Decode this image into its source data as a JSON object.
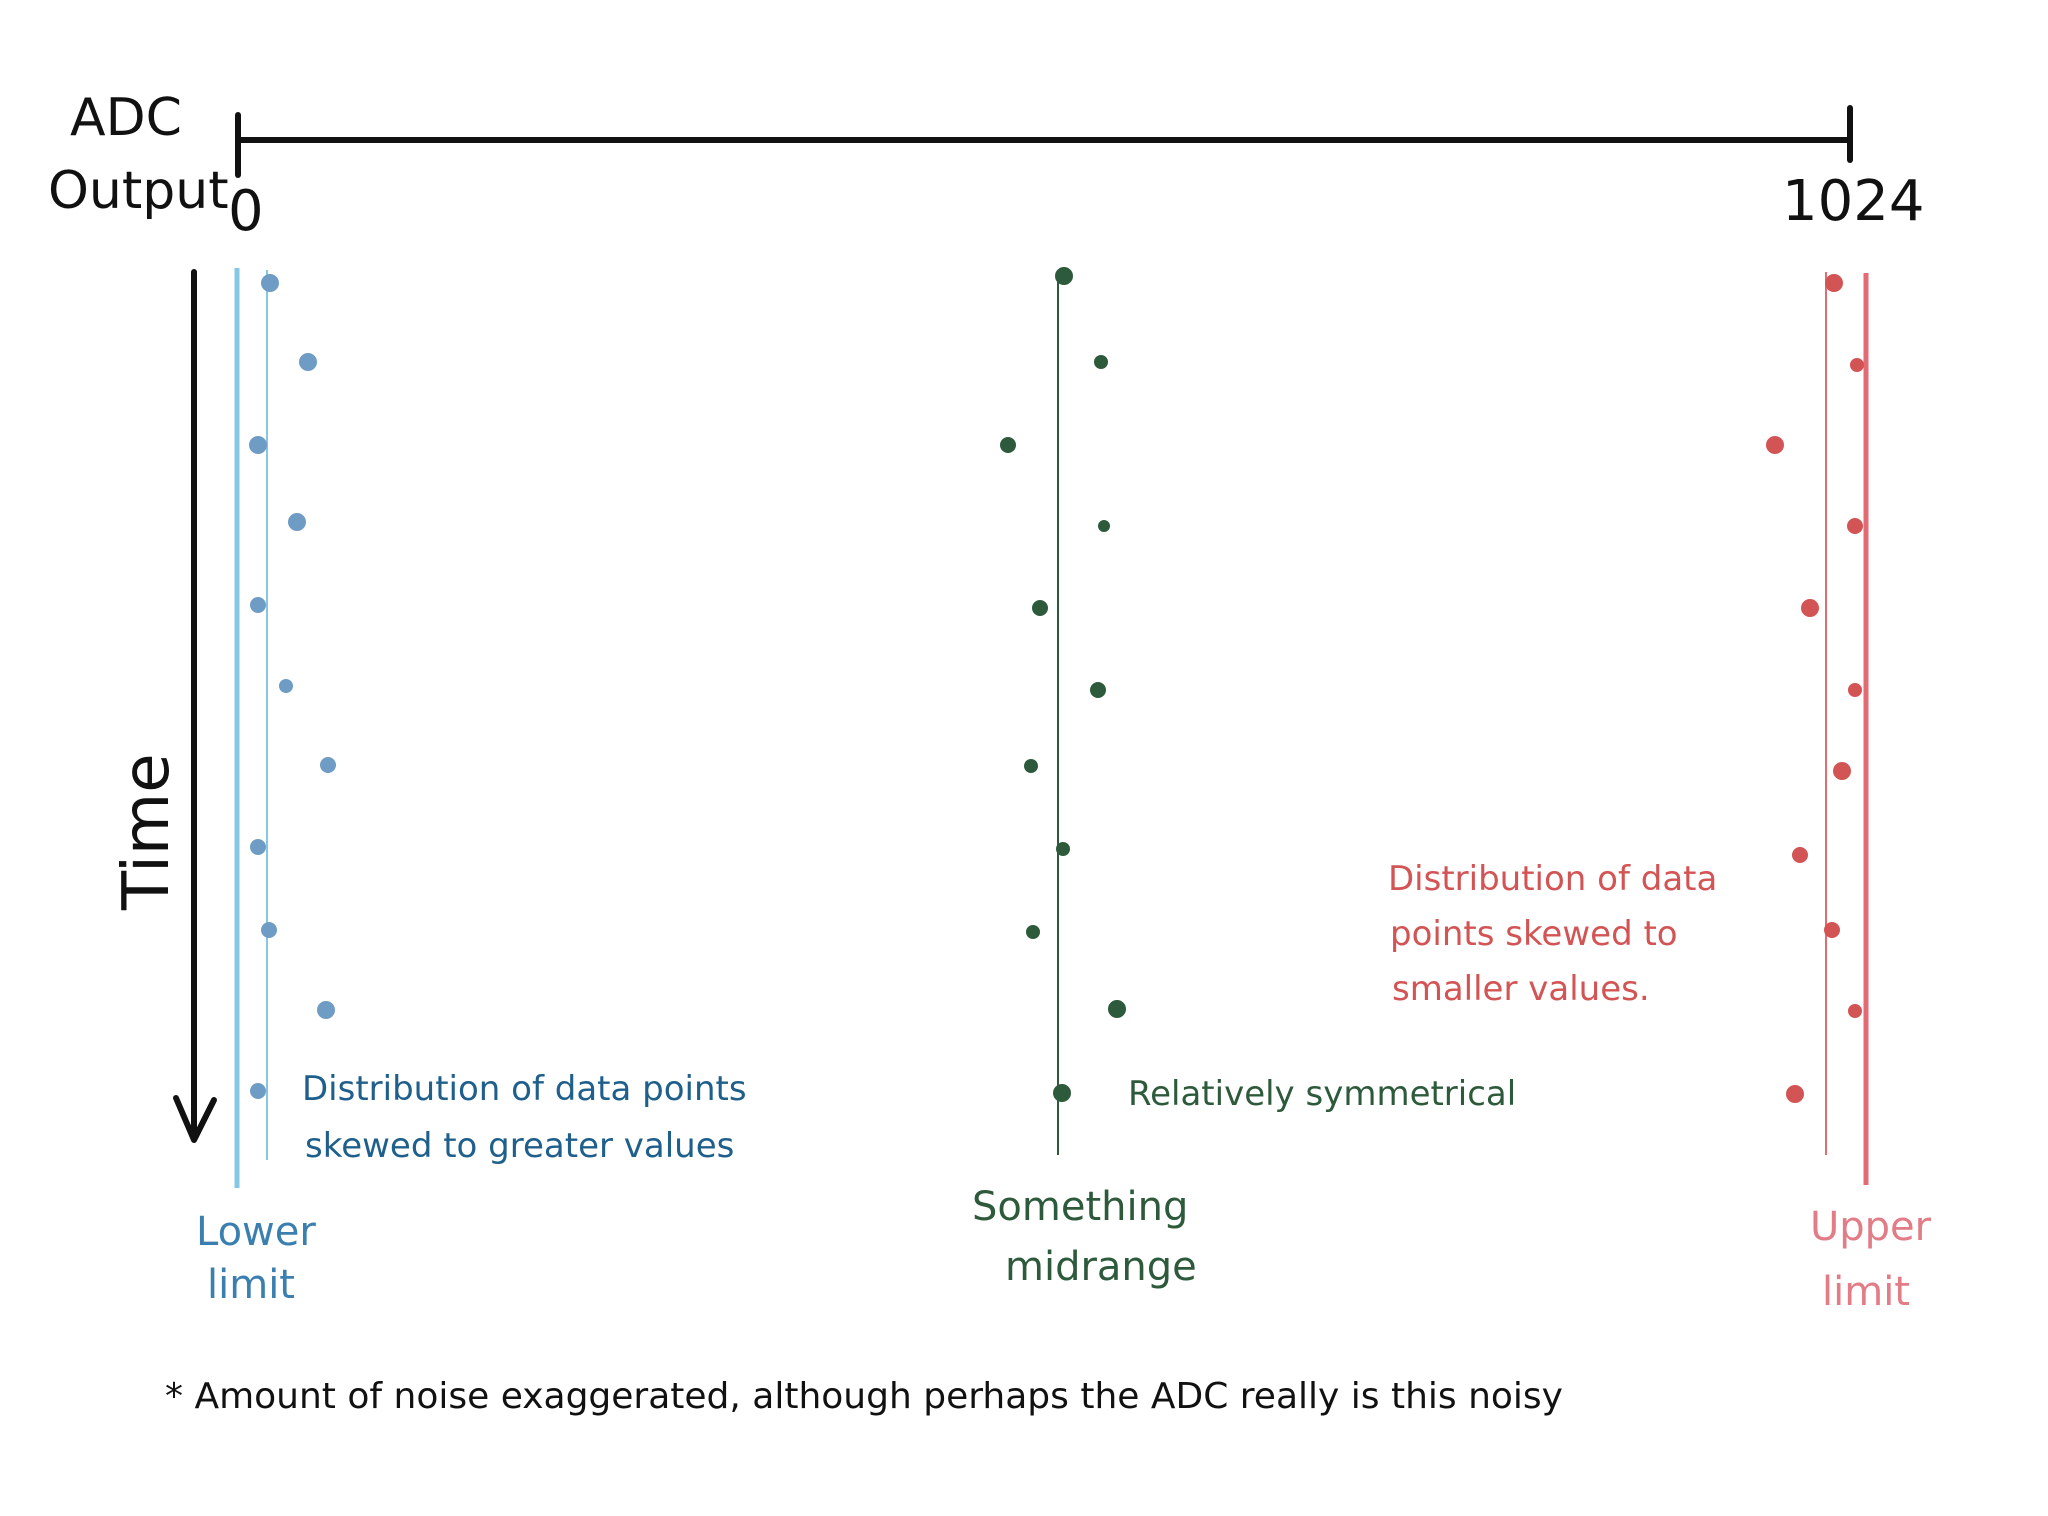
{
  "axis": {
    "title_line1": "ADC",
    "title_line2": "Output",
    "min_label": "0",
    "max_label": "1024",
    "time_label": "Time"
  },
  "channels": [
    {
      "id": "lower",
      "color": "#6f9cc4",
      "limit_line_color": "#86c7e3",
      "label_line1": "Lower",
      "label_line2": "limit",
      "note_lines": [
        "Distribution of data points",
        "skewed to greater values"
      ]
    },
    {
      "id": "mid",
      "color": "#2e5a3c",
      "limit_line_color": "#2e5a3c",
      "label_line1": "Something",
      "label_line2": "midrange",
      "note_lines": [
        "Relatively symmetrical"
      ]
    },
    {
      "id": "upper",
      "color": "#d35454",
      "limit_line_color": "#e36b73",
      "label_line1": "Upper",
      "label_line2": "limit",
      "note_lines": [
        "Distribution of data",
        "points skewed to",
        "smaller values."
      ]
    }
  ],
  "footnote": "* Amount of noise exaggerated, although perhaps the ADC really is this noisy"
}
